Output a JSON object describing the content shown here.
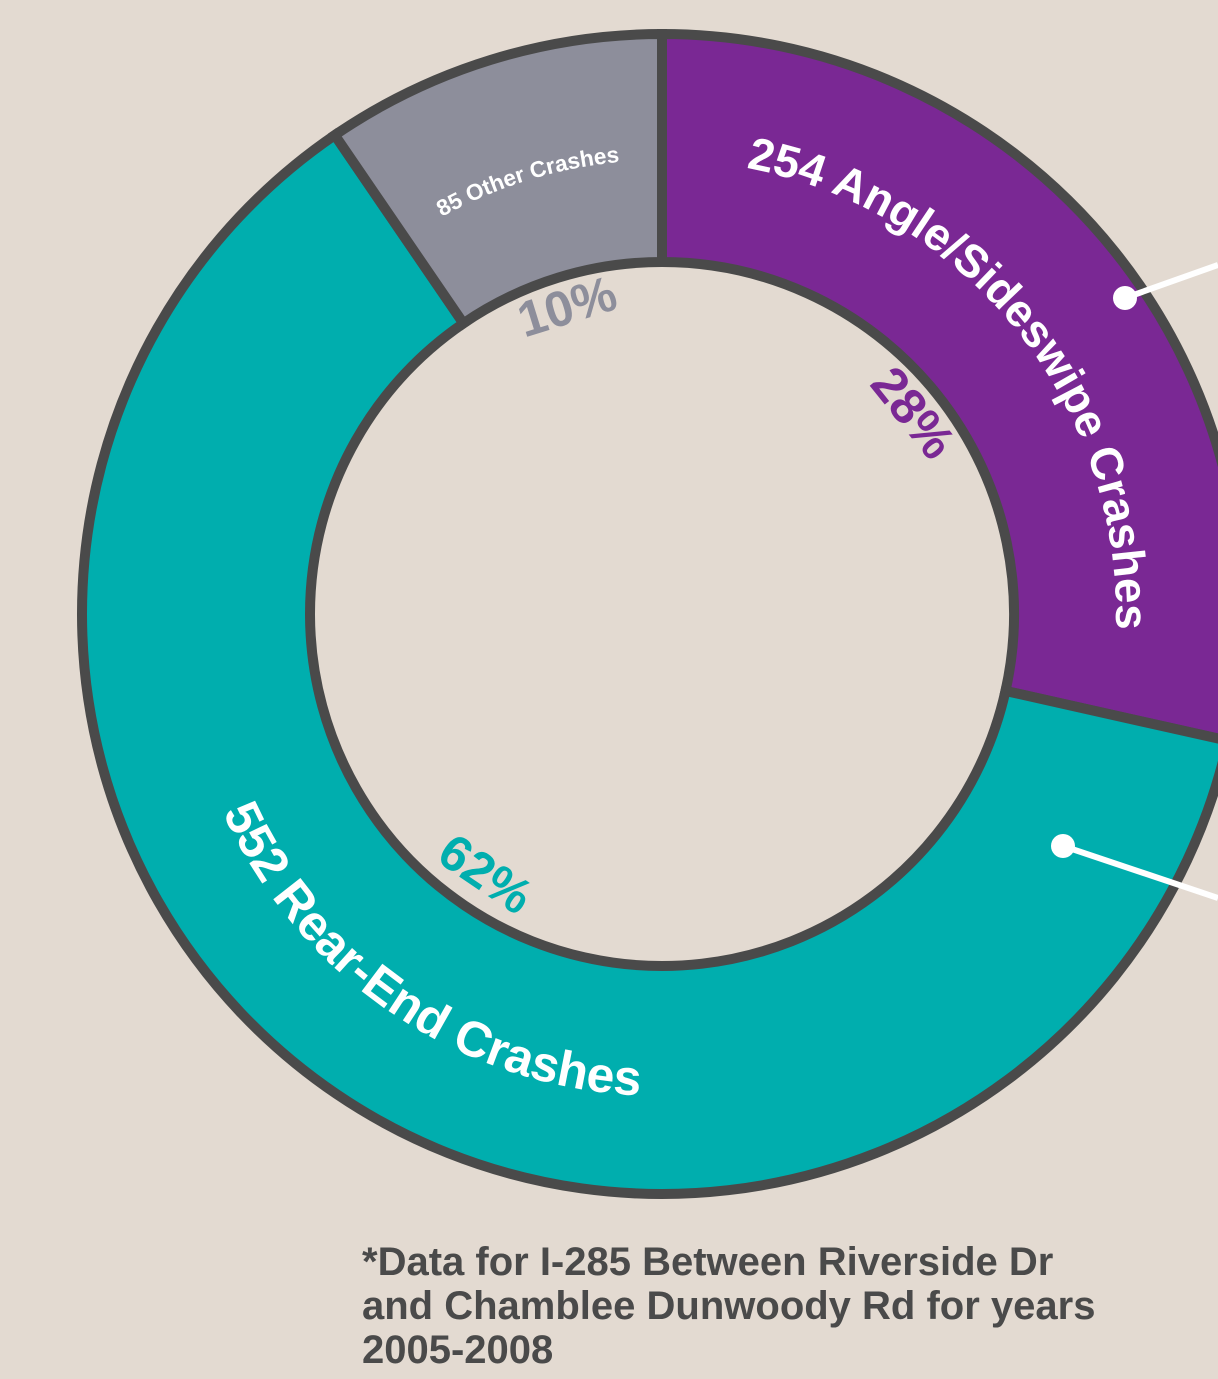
{
  "chart_data": {
    "type": "donut",
    "categories": [
      "Angle/Sideswipe Crashes",
      "Rear-End Crashes",
      "Other Crashes"
    ],
    "values": [
      254,
      552,
      85
    ],
    "colors": [
      "#7a2894",
      "#00aeae",
      "#8d8e9b"
    ],
    "percentages": [
      28,
      62,
      10
    ],
    "percent_labels": [
      "28%",
      "62%",
      "10%"
    ],
    "footnote": [
      "*Data for I-285 Between Riverside Dr",
      "and Chamblee Dunwoody Rd for years",
      "2005-2008"
    ]
  }
}
